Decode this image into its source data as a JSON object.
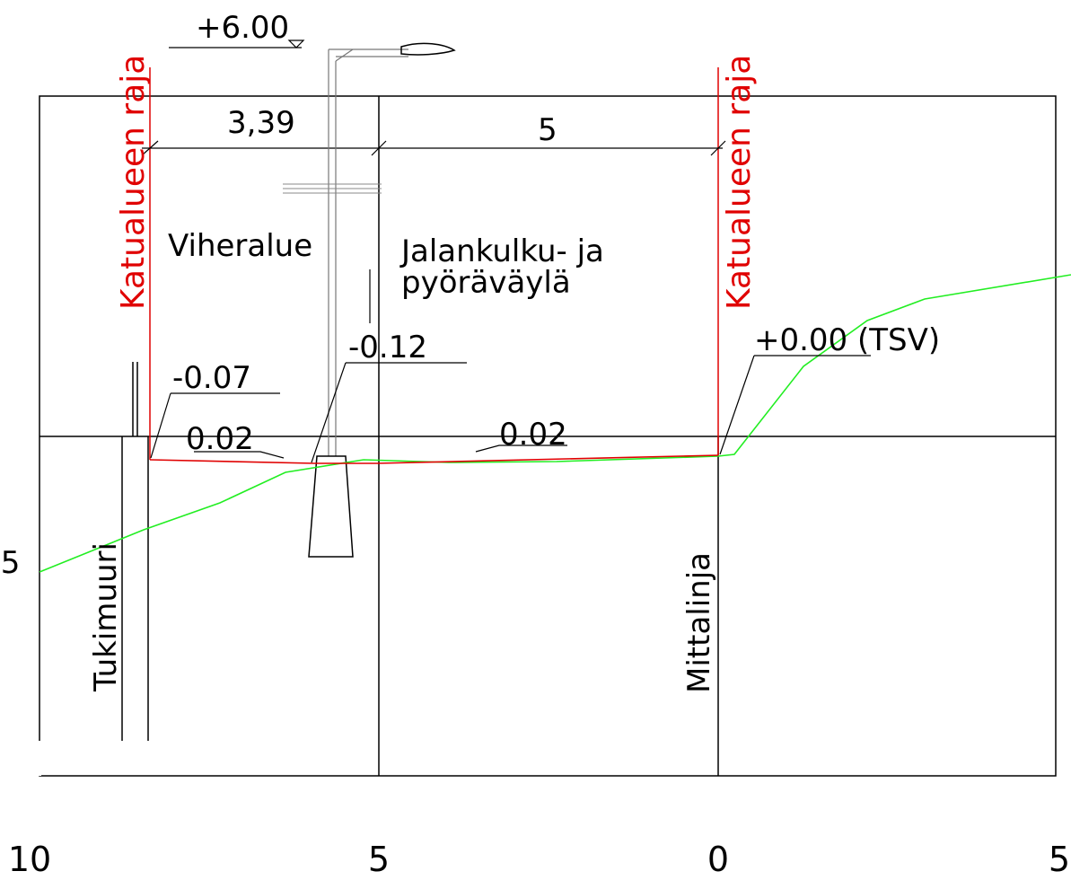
{
  "colors": {
    "boundary": "#e00000",
    "terrain": "#22ee22",
    "design": "#e00000",
    "lines": "#000000"
  },
  "labels": {
    "boundary_left": "Katualueen raja",
    "boundary_right": "Katualueen raja",
    "elev_top": "+6.00",
    "dim_left": "3,39",
    "dim_right": "5",
    "zone_green": "Viheralue",
    "zone_path_line1": "Jalankulku- ja",
    "zone_path_line2": "pyöräväylä",
    "elev_reference": "+0.00 (TSV)",
    "elev_lamp": "-0.12",
    "elev_edge": "-0.07",
    "slope_left": "0.02",
    "slope_right": "0.02",
    "retaining_wall": "Tukimuuri",
    "measure_line": "Mittalinja",
    "side_tick": ".5"
  },
  "axis": {
    "ticks": [
      "10",
      "5",
      "0",
      "5"
    ]
  }
}
